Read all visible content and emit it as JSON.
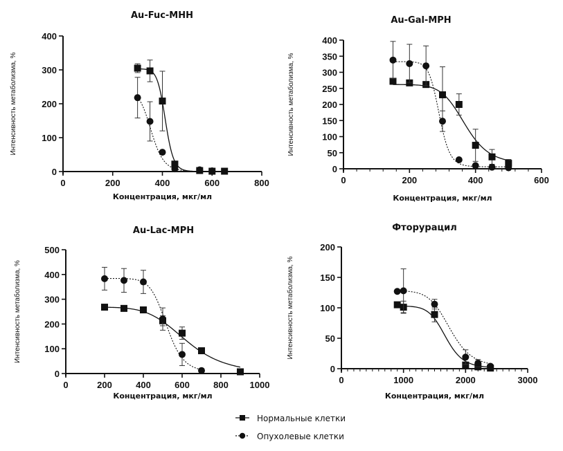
{
  "chart_data": [
    {
      "type": "scatter",
      "title": "Au-Fuc-MHH",
      "xlabel": "Концентрация, мкг/мл",
      "ylabel": "Интенсивность метаболизма, %",
      "xlim": [
        0,
        800
      ],
      "ylim": [
        0,
        400
      ],
      "xticks": [
        "0",
        "200",
        "400",
        "600",
        "800"
      ],
      "yticks": [
        "0",
        "100",
        "200",
        "300",
        "400"
      ],
      "grid": false,
      "series": [
        {
          "name": "Нормальные клетки",
          "marker": "square",
          "line": "solid",
          "x": [
            300,
            350,
            400,
            450,
            550,
            600,
            650
          ],
          "y": [
            305,
            297,
            208,
            22,
            3,
            1,
            1
          ],
          "err": [
            13,
            32,
            88,
            0,
            0,
            0,
            0
          ],
          "fit": {
            "top": 303,
            "bottom": 0,
            "ec50": 412,
            "hill": 25
          }
        },
        {
          "name": "Опухолевые клетки",
          "marker": "circle",
          "line": "dashed",
          "x": [
            300,
            350,
            400,
            450,
            550,
            600
          ],
          "y": [
            218,
            148,
            57,
            8,
            5,
            2
          ],
          "err": [
            60,
            58,
            0,
            0,
            0,
            0
          ],
          "fit": {
            "top": 240,
            "bottom": 0,
            "ec50": 355,
            "hill": 14
          }
        }
      ]
    },
    {
      "type": "scatter",
      "title": "Au-Gal-MPH",
      "xlabel": "Концентрация, мкг/мл",
      "ylabel": "Интенсивность метаболизма, %",
      "xlim": [
        0,
        600
      ],
      "ylim": [
        0,
        400
      ],
      "xticks": [
        "0",
        "200",
        "400",
        "600"
      ],
      "yticks": [
        "0",
        "50",
        "100",
        "150",
        "200",
        "250",
        "300",
        "350",
        "400"
      ],
      "grid": false,
      "series": [
        {
          "name": "Нормальные клетки",
          "marker": "square",
          "line": "solid",
          "x": [
            150,
            200,
            250,
            300,
            350,
            400,
            450,
            500
          ],
          "y": [
            272,
            267,
            262,
            230,
            200,
            73,
            37,
            17
          ],
          "err": [
            0,
            0,
            0,
            87,
            33,
            50,
            23,
            12
          ],
          "fit": {
            "top": 262,
            "bottom": 15,
            "ec50": 368,
            "hill": 10
          }
        },
        {
          "name": "Опухолевые клетки",
          "marker": "circle",
          "line": "dashed",
          "x": [
            150,
            200,
            250,
            300,
            350,
            400,
            450,
            500
          ],
          "y": [
            338,
            327,
            320,
            148,
            28,
            10,
            5,
            3
          ],
          "err": [
            58,
            60,
            62,
            32,
            0,
            0,
            0,
            0
          ],
          "fit": {
            "top": 333,
            "bottom": 6,
            "ec50": 290,
            "hill": 18
          }
        }
      ]
    },
    {
      "type": "scatter",
      "title": "Au-Lac-MPH",
      "xlabel": "Концентрация, мкг/мл",
      "ylabel": "Интенсивность метаболизма, %",
      "xlim": [
        0,
        1000
      ],
      "ylim": [
        0,
        500
      ],
      "xticks": [
        "0",
        "200",
        "400",
        "600",
        "800",
        "1000"
      ],
      "yticks": [
        "0",
        "100",
        "200",
        "300",
        "400",
        "500"
      ],
      "grid": false,
      "series": [
        {
          "name": "Нормальные клетки",
          "marker": "square",
          "line": "solid",
          "x": [
            200,
            300,
            400,
            500,
            600,
            700,
            900
          ],
          "y": [
            268,
            263,
            257,
            213,
            163,
            92,
            7
          ],
          "err": [
            0,
            0,
            0,
            20,
            25,
            0,
            0
          ],
          "fit": {
            "top": 268,
            "bottom": 0,
            "ec50": 620,
            "hill": 6
          }
        },
        {
          "name": "Опухолевые клетки",
          "marker": "circle",
          "line": "dashed",
          "x": [
            200,
            300,
            400,
            500,
            600,
            700
          ],
          "y": [
            383,
            376,
            370,
            220,
            77,
            12
          ],
          "err": [
            46,
            48,
            47,
            45,
            45,
            0
          ],
          "fit": {
            "top": 384,
            "bottom": 5,
            "ec50": 520,
            "hill": 12
          }
        }
      ]
    },
    {
      "type": "scatter",
      "title": "Фторурацил",
      "xlabel": "Концентрация, мкг/мл",
      "ylabel": "Интенсивность метаболизма, %",
      "xlim": [
        0,
        3000
      ],
      "ylim": [
        0,
        200
      ],
      "xticks": [
        "0",
        "1000",
        "2000",
        "3000"
      ],
      "yticks": [
        "0",
        "50",
        "100",
        "150",
        "200"
      ],
      "grid": false,
      "series": [
        {
          "name": "Нормальные клетки",
          "marker": "square",
          "line": "solid",
          "x": [
            900,
            1000,
            1500,
            2000,
            2200,
            2400
          ],
          "y": [
            105,
            101,
            89,
            6,
            3,
            1
          ],
          "err": [
            0,
            10,
            12,
            0,
            0,
            0
          ],
          "fit": {
            "top": 103,
            "bottom": 1,
            "ec50": 1680,
            "hill": 12
          }
        },
        {
          "name": "Опухолевые клетки",
          "marker": "circle",
          "line": "dashed",
          "x": [
            900,
            1000,
            1500,
            2000,
            2200,
            2400
          ],
          "y": [
            127,
            128,
            106,
            19,
            9,
            4
          ],
          "err": [
            0,
            36,
            8,
            12,
            6,
            0
          ],
          "fit": {
            "top": 128,
            "bottom": 3,
            "ec50": 1750,
            "hill": 10
          }
        }
      ]
    }
  ],
  "legend": {
    "items": [
      {
        "label": "Нормальные клетки",
        "marker": "square",
        "line": "solid"
      },
      {
        "label": "Опухолевые клетки",
        "marker": "circle",
        "line": "dashed"
      }
    ],
    "placement": "bottom-center"
  }
}
